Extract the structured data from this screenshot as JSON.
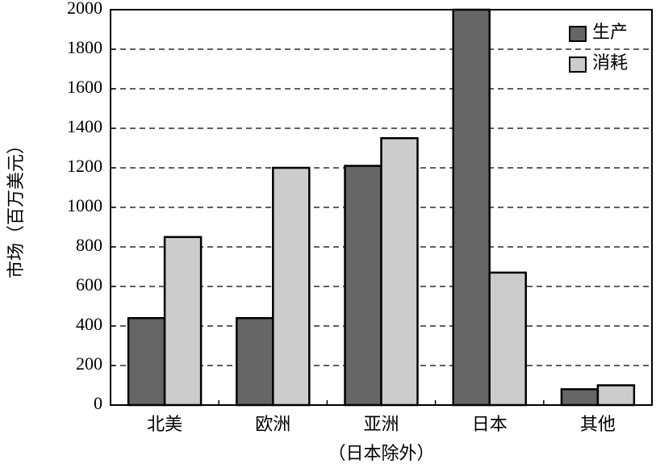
{
  "chart_data": {
    "type": "bar",
    "y_label": "市场（百万美元）",
    "categories": [
      "北美",
      "欧洲",
      "亚洲",
      "日本",
      "其他"
    ],
    "annotations": [
      "（日本除外）"
    ],
    "series": [
      {
        "name": "生产",
        "color": "#666666",
        "values": [
          440,
          440,
          1210,
          2000,
          80
        ]
      },
      {
        "name": "消耗",
        "color": "#cccccc",
        "values": [
          850,
          1200,
          1350,
          670,
          100
        ]
      }
    ],
    "ylim": [
      0,
      2000
    ],
    "yticks": [
      0,
      200,
      400,
      600,
      800,
      1000,
      1200,
      1400,
      1600,
      1800,
      2000
    ],
    "grid": true,
    "legend": "upper right"
  }
}
